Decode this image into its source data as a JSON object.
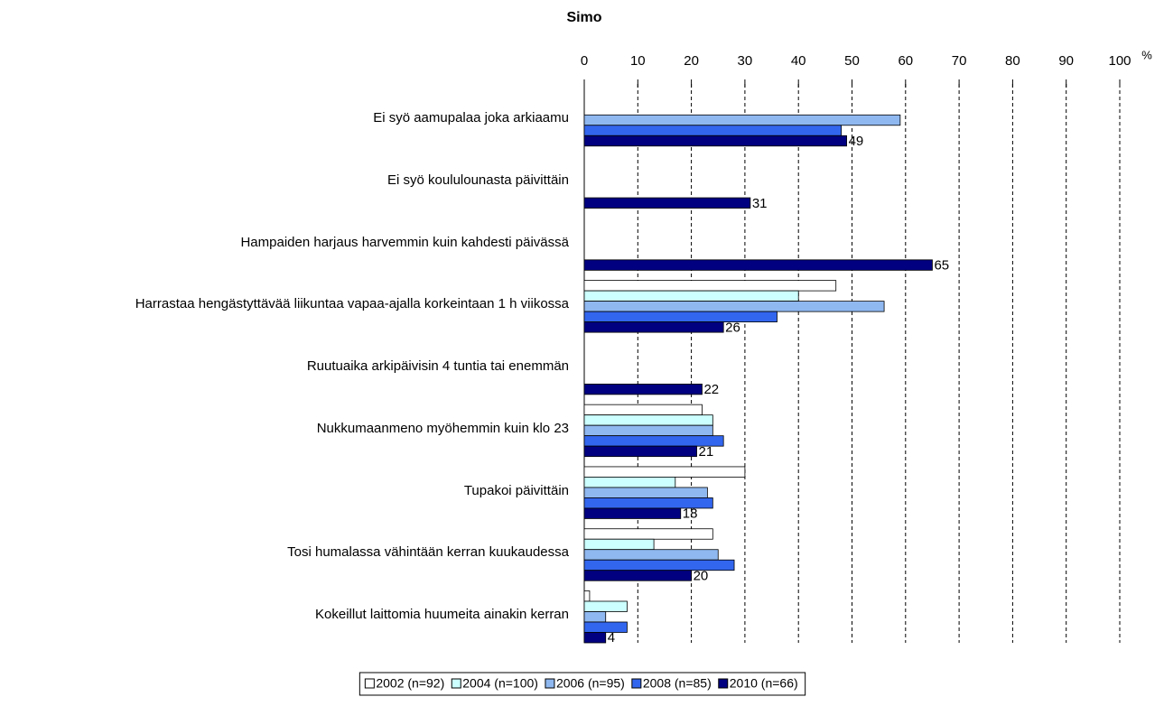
{
  "chart_data": {
    "type": "hbar",
    "title": "Simo",
    "x_unit": "%",
    "categories": [
      "Ei syö aamupalaa joka arkiaamu",
      "Ei syö koululounasta päivittäin",
      "Hampaiden harjaus harvemmin kuin kahdesti päivässä",
      "Harrastaa hengästyttävää liikuntaa vapaa-ajalla korkeintaan 1 h viikossa",
      "Ruutuaika arkipäivisin 4 tuntia tai enemmän",
      "Nukkumaanmeno myöhemmin kuin klo 23",
      "Tupakoi päivittäin",
      "Tosi humalassa vähintään kerran kuukaudessa",
      "Kokeillut laittomia huumeita ainakin kerran"
    ],
    "series": [
      {
        "name": "2002 (n=92)",
        "color": "#ffffff",
        "values": [
          null,
          null,
          null,
          47,
          null,
          22,
          30,
          24,
          1
        ]
      },
      {
        "name": "2004 (n=100)",
        "color": "#ccffff",
        "values": [
          null,
          null,
          null,
          40,
          null,
          24,
          17,
          13,
          8
        ]
      },
      {
        "name": "2006 (n=95)",
        "color": "#8fb8f0",
        "values": [
          59,
          null,
          null,
          56,
          null,
          24,
          23,
          25,
          4
        ]
      },
      {
        "name": "2008 (n=85)",
        "color": "#3366ee",
        "values": [
          48,
          null,
          null,
          36,
          null,
          26,
          24,
          28,
          8
        ]
      },
      {
        "name": "2010 (n=66)",
        "color": "#000080",
        "values": [
          49,
          31,
          65,
          26,
          22,
          21,
          18,
          20,
          4
        ],
        "show_values": true
      }
    ],
    "xlim": [
      0,
      100
    ],
    "xticks": [
      0,
      10,
      20,
      30,
      40,
      50,
      60,
      70,
      80,
      90,
      100
    ],
    "grid": true,
    "legend": "bottom"
  }
}
